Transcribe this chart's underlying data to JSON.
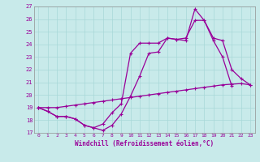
{
  "xlabel": "Windchill (Refroidissement éolien,°C)",
  "bg_color": "#c8eaea",
  "line_color": "#990099",
  "grid_color": "#a8d8d8",
  "x_ticks": [
    0,
    1,
    2,
    3,
    4,
    5,
    6,
    7,
    8,
    9,
    10,
    11,
    12,
    13,
    14,
    15,
    16,
    17,
    18,
    19,
    20,
    21,
    22,
    23
  ],
  "y_ticks": [
    17,
    18,
    19,
    20,
    21,
    22,
    23,
    24,
    25,
    26,
    27
  ],
  "ylim": [
    17,
    27
  ],
  "xlim": [
    -0.5,
    23.5
  ],
  "line1_x": [
    0,
    1,
    2,
    3,
    4,
    5,
    6,
    7,
    8,
    9,
    10,
    11,
    12,
    13,
    14,
    15,
    16,
    17,
    18,
    19,
    20,
    21
  ],
  "line1_y": [
    19.0,
    18.7,
    18.3,
    18.3,
    18.1,
    17.6,
    17.4,
    17.2,
    17.6,
    18.5,
    19.9,
    21.5,
    23.3,
    23.4,
    24.5,
    24.4,
    24.3,
    26.8,
    25.9,
    24.3,
    23.0,
    20.7
  ],
  "line2_x": [
    0,
    1,
    2,
    3,
    4,
    5,
    6,
    7,
    8,
    9,
    10,
    11,
    12,
    13,
    14,
    15,
    16,
    17,
    18,
    19,
    20,
    21,
    22,
    23
  ],
  "line2_y": [
    19.0,
    18.7,
    18.3,
    18.3,
    18.1,
    17.6,
    17.4,
    17.7,
    18.6,
    19.3,
    23.3,
    24.1,
    24.1,
    24.1,
    24.5,
    24.4,
    24.5,
    25.9,
    25.9,
    24.5,
    24.3,
    22.0,
    21.3,
    20.8
  ],
  "line3_x": [
    0,
    1,
    2,
    3,
    4,
    5,
    6,
    7,
    8,
    9,
    10,
    11,
    12,
    13,
    14,
    15,
    16,
    17,
    18,
    19,
    20,
    21,
    22,
    23
  ],
  "line3_y": [
    19.0,
    19.0,
    19.0,
    19.1,
    19.2,
    19.3,
    19.4,
    19.5,
    19.6,
    19.7,
    19.8,
    19.9,
    20.0,
    20.1,
    20.2,
    20.3,
    20.4,
    20.5,
    20.6,
    20.7,
    20.8,
    20.85,
    20.9,
    20.8
  ]
}
